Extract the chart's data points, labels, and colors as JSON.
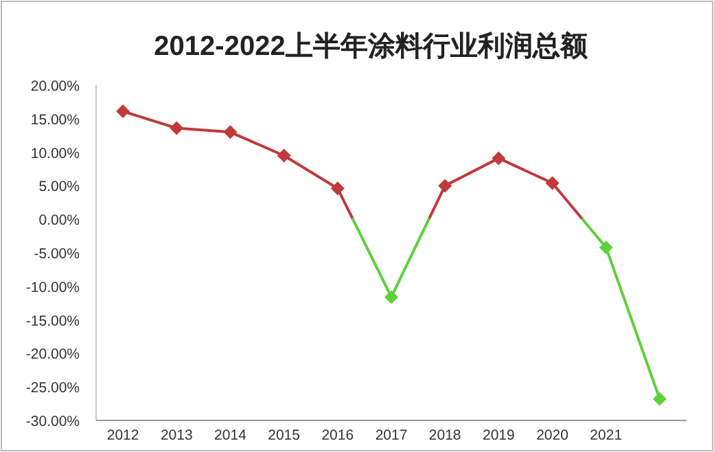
{
  "chart_data": {
    "type": "line",
    "title": "2012-2022上半年涂料行业利润总额",
    "categories": [
      "2012",
      "2013",
      "2014",
      "2015",
      "2016",
      "2017",
      "2018",
      "2019",
      "2020",
      "2021",
      null
    ],
    "series": [
      {
        "color": "#c0393b",
        "values": [
          16.1,
          13.6,
          13.0,
          9.5,
          4.6,
          null,
          5.0,
          9.1,
          5.4,
          null,
          null
        ]
      },
      {
        "color": "#5fcf3c",
        "values": [
          null,
          null,
          null,
          null,
          null,
          -11.6,
          null,
          null,
          null,
          -4.2,
          -26.8
        ]
      }
    ],
    "ylim": [
      -30,
      20
    ],
    "yticks": [
      {
        "value": -30,
        "label": "-30.00%"
      },
      {
        "value": -25,
        "label": "-25.00%"
      },
      {
        "value": -20,
        "label": "-20.00%"
      },
      {
        "value": -15,
        "label": "-15.00%"
      },
      {
        "value": -10,
        "label": "-10.00%"
      },
      {
        "value": -5,
        "label": "-5.00%"
      },
      {
        "value": 0,
        "label": "0.00%"
      },
      {
        "value": 5,
        "label": "5.00%"
      },
      {
        "value": 10,
        "label": "10.00%"
      },
      {
        "value": 15,
        "label": "15.00%"
      },
      {
        "value": 20,
        "label": "20.00%"
      }
    ],
    "marker": "diamond",
    "grid": false
  }
}
